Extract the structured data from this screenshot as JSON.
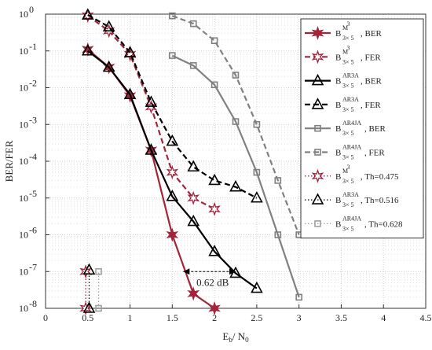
{
  "chart_data": {
    "type": "line",
    "xlabel": "E_b/N_0",
    "xlabel_main": "E",
    "xlabel_sub1": "b",
    "xlabel_mid": "/ N",
    "xlabel_sub2": "0",
    "ylabel": "BER/FER",
    "xlim": [
      0,
      4.5
    ],
    "ylim": [
      1e-08,
      1
    ],
    "yscale": "log",
    "grid": true,
    "legend_position": "top-right",
    "xticks": [
      "0",
      "0.5",
      "1",
      "1.5",
      "2",
      "2.5",
      "3",
      "3.5",
      "4",
      "4.5"
    ],
    "yticks": [
      "10",
      "10",
      "10",
      "10",
      "10",
      "10",
      "10",
      "10",
      "10"
    ],
    "ytick_exponents": [
      "0",
      "-1",
      "-2",
      "-3",
      "-4",
      "-5",
      "-6",
      "-7",
      "-8"
    ],
    "annotation": {
      "text": "0.62 dB",
      "x_from": 1.63,
      "x_to": 2.25,
      "y": 1e-07
    },
    "series": [
      {
        "label_base": "B",
        "label_sup": "M",
        "label_sup2": "3",
        "label_sub": "3× 5",
        "label_tail": ", BER",
        "color": "#a3243b",
        "dash": "solid",
        "marker": "star",
        "x": [
          0.5,
          0.75,
          1.0,
          1.25,
          1.5,
          1.75,
          2.0
        ],
        "y": [
          0.11,
          0.036,
          0.006,
          0.0002,
          1e-06,
          2.5e-08,
          1e-08
        ]
      },
      {
        "label_base": "B",
        "label_sup": "M",
        "label_sup2": "3",
        "label_sub": "3× 5",
        "label_tail": ", FER",
        "color": "#a3243b",
        "dash": "dashed",
        "marker": "star-open",
        "x": [
          0.5,
          0.75,
          1.0,
          1.25,
          1.5,
          1.75,
          2.0
        ],
        "y": [
          0.9,
          0.35,
          0.08,
          0.003,
          5e-05,
          1e-05,
          5e-06
        ]
      },
      {
        "label_base": "B",
        "label_sup": "AR3A",
        "label_sup2": "",
        "label_sub": "3× 5",
        "label_tail": ", BER",
        "color": "#000000",
        "dash": "solid",
        "marker": "triangle",
        "x": [
          0.5,
          0.75,
          1.0,
          1.25,
          1.5,
          1.75,
          2.0,
          2.25,
          2.5
        ],
        "y": [
          0.1,
          0.036,
          0.0065,
          0.0002,
          1.1e-05,
          2.3e-06,
          3.5e-07,
          9e-08,
          3.5e-08
        ]
      },
      {
        "label_base": "B",
        "label_sup": "AR3A",
        "label_sup2": "",
        "label_sub": "3× 5",
        "label_tail": ", FER",
        "color": "#000000",
        "dash": "dashed",
        "marker": "triangle",
        "x": [
          0.5,
          0.75,
          1.0,
          1.25,
          1.5,
          1.75,
          2.0,
          2.25,
          2.5
        ],
        "y": [
          0.95,
          0.45,
          0.09,
          0.004,
          0.00035,
          7e-05,
          3e-05,
          2e-05,
          1e-05
        ]
      },
      {
        "label_base": "B",
        "label_sup": "AR4JA",
        "label_sup2": "",
        "label_sub": "3× 5",
        "label_tail": ", BER",
        "color": "#808080",
        "dash": "solid",
        "marker": "square",
        "x": [
          1.5,
          1.75,
          2.0,
          2.25,
          2.5,
          2.75,
          3.0
        ],
        "y": [
          0.075,
          0.04,
          0.012,
          0.0012,
          5e-05,
          1e-06,
          2e-08
        ]
      },
      {
        "label_base": "B",
        "label_sup": "AR4JA",
        "label_sup2": "",
        "label_sub": "3× 5",
        "label_tail": ", FER",
        "color": "#808080",
        "dash": "dashed",
        "marker": "square",
        "x": [
          1.5,
          1.75,
          2.0,
          2.25,
          2.5,
          2.75,
          3.0
        ],
        "y": [
          0.9,
          0.55,
          0.19,
          0.022,
          0.001,
          3e-05,
          1e-06
        ]
      },
      {
        "label_base": "B",
        "label_sup": "M",
        "label_sup2": "3",
        "label_sub": "3× 5",
        "label_tail": ", Th=0.475",
        "color": "#a3243b",
        "dash": "dotted",
        "marker": "star-open",
        "x": [
          0.475,
          0.475
        ],
        "y": [
          1e-08,
          1e-07
        ]
      },
      {
        "label_base": "B",
        "label_sup": "AR3A",
        "label_sup2": "",
        "label_sub": "3× 5",
        "label_tail": ", Th=0.516",
        "color": "#000000",
        "dash": "dotted",
        "marker": "triangle",
        "x": [
          0.516,
          0.516
        ],
        "y": [
          1e-08,
          1.1e-07
        ]
      },
      {
        "label_base": "B",
        "label_sup": "AR4JA",
        "label_sup2": "",
        "label_sub": "3× 5",
        "label_tail": ", Th=0.628",
        "color": "#a0a0a0",
        "dash": "dotted",
        "marker": "square",
        "x": [
          0.628,
          0.628
        ],
        "y": [
          1e-08,
          1e-07
        ]
      }
    ]
  }
}
